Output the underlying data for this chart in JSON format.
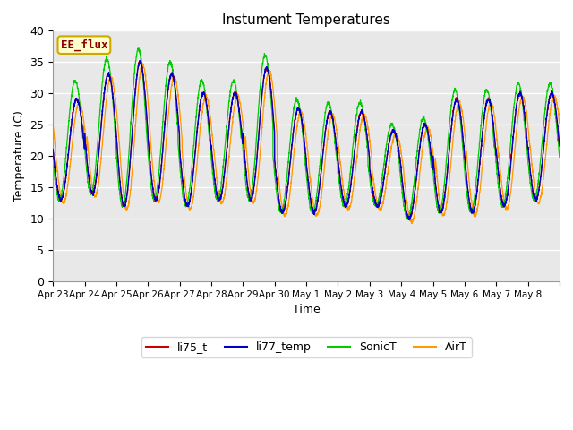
{
  "title": "Instument Temperatures",
  "xlabel": "Time",
  "ylabel": "Temperature (C)",
  "ylim": [
    0,
    40
  ],
  "yticks": [
    0,
    5,
    10,
    15,
    20,
    25,
    30,
    35,
    40
  ],
  "colors": {
    "li75_t": "#cc0000",
    "li77_temp": "#0000cc",
    "SonicT": "#00cc00",
    "AirT": "#ff9900"
  },
  "annotation": "EE_flux",
  "tick_labels": [
    "Apr 23",
    "Apr 24",
    "Apr 25",
    "Apr 26",
    "Apr 27",
    "Apr 28",
    "Apr 29",
    "Apr 30",
    "May 1",
    "May 2",
    "May 3",
    "May 4",
    "May 5",
    "May 6",
    "May 7",
    "May 8"
  ],
  "num_days": 16,
  "fig_bg": "#ffffff",
  "plot_bg": "#e8e8e8",
  "figsize": [
    6.4,
    4.8
  ],
  "dpi": 100,
  "day_peaks": [
    29,
    33,
    35,
    33,
    30,
    30,
    34,
    27.5,
    27,
    27,
    24,
    25,
    29,
    29,
    30,
    30
  ],
  "day_mins": [
    13,
    14,
    12,
    13,
    12,
    13,
    13,
    11,
    11,
    12,
    12,
    10,
    11,
    11,
    12,
    13
  ],
  "sonic_extra": [
    3,
    2.5,
    2,
    2,
    2,
    2,
    2,
    1.5,
    1.5,
    1.5,
    1,
    1,
    1.5,
    1.5,
    1.5,
    1.5
  ],
  "air_lag": 0.08,
  "peak_hour": 0.58,
  "pts_per_day": 200
}
